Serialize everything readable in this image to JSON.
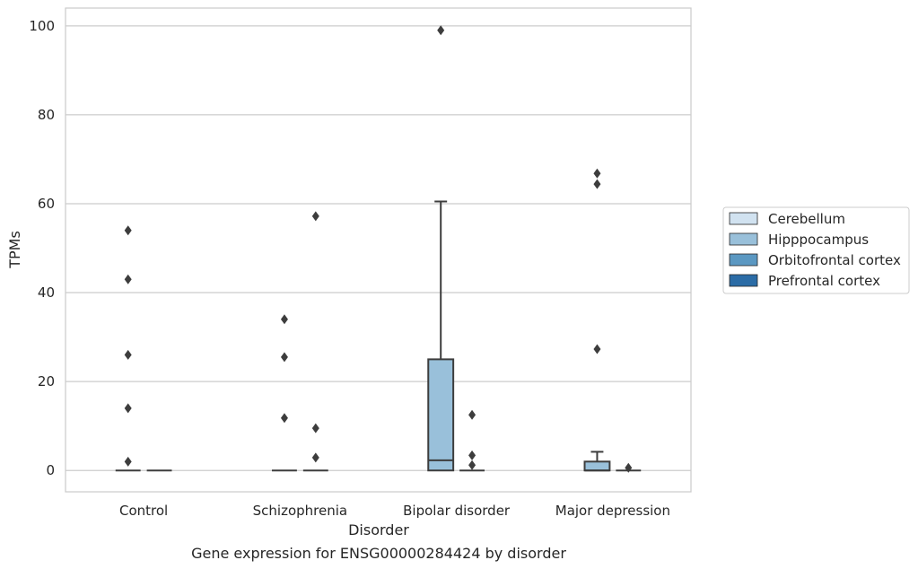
{
  "chart_data": {
    "type": "box",
    "title": "",
    "caption": "Gene expression for ENSG00000284424 by disorder",
    "xlabel": "Disorder",
    "ylabel": "TPMs",
    "ylim": [
      -4.8,
      104
    ],
    "yticks": [
      0,
      20,
      40,
      60,
      80,
      100
    ],
    "grid": "horizontal",
    "legend_position": "right",
    "categories": [
      "Control",
      "Schizophrenia",
      "Bipolar disorder",
      "Major depression"
    ],
    "series": [
      {
        "name": "Cerebellum",
        "color": "#d1e2f0"
      },
      {
        "name": "Hipppocampus",
        "color": "#99c0da"
      },
      {
        "name": "Orbitofrontal cortex",
        "color": "#5b98c2"
      },
      {
        "name": "Prefrontal cortex",
        "color": "#2b6ca6"
      }
    ],
    "boxes": [
      {
        "category": "Control",
        "series": "Hipppocampus",
        "whislo": 0,
        "q1": 0,
        "med": 0,
        "q3": 0,
        "whishi": 0,
        "fliers": [
          54,
          43,
          26,
          14,
          2
        ]
      },
      {
        "category": "Control",
        "series": "Orbitofrontal cortex",
        "whislo": 0,
        "q1": 0,
        "med": 0,
        "q3": 0,
        "whishi": 0,
        "fliers": []
      },
      {
        "category": "Schizophrenia",
        "series": "Hipppocampus",
        "whislo": 0,
        "q1": 0,
        "med": 0,
        "q3": 0,
        "whishi": 0,
        "fliers": [
          34,
          25.5,
          11.8
        ]
      },
      {
        "category": "Schizophrenia",
        "series": "Orbitofrontal cortex",
        "whislo": 0,
        "q1": 0,
        "med": 0,
        "q3": 0,
        "whishi": 0,
        "fliers": [
          57.2,
          9.5,
          2.9
        ]
      },
      {
        "category": "Bipolar disorder",
        "series": "Hipppocampus",
        "whislo": 0,
        "q1": 0,
        "med": 2.3,
        "q3": 25,
        "whishi": 60.5,
        "fliers": [
          99
        ]
      },
      {
        "category": "Bipolar disorder",
        "series": "Orbitofrontal cortex",
        "whislo": 0,
        "q1": 0,
        "med": 0,
        "q3": 0,
        "whishi": 0,
        "fliers": [
          12.5,
          3.4,
          1.2
        ]
      },
      {
        "category": "Major depression",
        "series": "Hipppocampus",
        "whislo": 0,
        "q1": 0,
        "med": 0,
        "q3": 2,
        "whishi": 4.2,
        "fliers": [
          66.8,
          64.4,
          27.3
        ]
      },
      {
        "category": "Major depression",
        "series": "Orbitofrontal cortex",
        "whislo": 0,
        "q1": 0,
        "med": 0,
        "q3": 0,
        "whishi": 0,
        "fliers": [
          0.6
        ]
      }
    ]
  }
}
